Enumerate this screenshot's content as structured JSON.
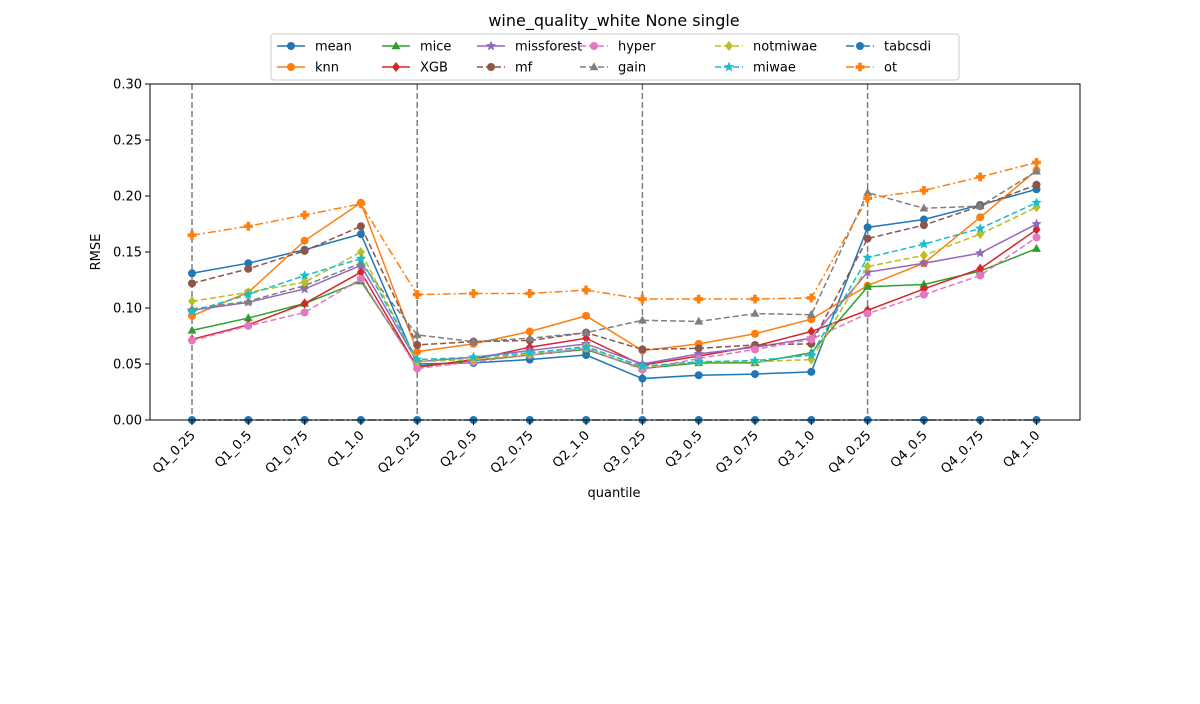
{
  "chart_data": {
    "type": "line",
    "title": "wine_quality_white None single",
    "xlabel": "quantile",
    "ylabel": "RMSE",
    "ylim": [
      0,
      0.3
    ],
    "yticks": [
      "0.00",
      "0.05",
      "0.10",
      "0.15",
      "0.20",
      "0.25",
      "0.30"
    ],
    "categories": [
      "Q1_0.25",
      "Q1_0.5",
      "Q1_0.75",
      "Q1_1.0",
      "Q2_0.25",
      "Q2_0.5",
      "Q2_0.75",
      "Q2_1.0",
      "Q3_0.25",
      "Q3_0.5",
      "Q3_0.75",
      "Q3_1.0",
      "Q4_0.25",
      "Q4_0.5",
      "Q4_0.75",
      "Q4_1.0"
    ],
    "vlines_at": [
      "Q1_0.25",
      "Q2_0.25",
      "Q3_0.25",
      "Q4_0.25"
    ],
    "grid": false,
    "legend_position": "top-center",
    "legend_columns": 6,
    "series": [
      {
        "name": "mean",
        "color": "#1f77b4",
        "dash": "solid",
        "marker": "circle",
        "values": [
          0.131,
          0.14,
          0.152,
          0.166,
          0.05,
          0.051,
          0.054,
          0.058,
          0.037,
          0.04,
          0.041,
          0.043,
          0.172,
          0.179,
          0.192,
          0.206
        ]
      },
      {
        "name": "knn",
        "color": "#ff7f0e",
        "dash": "solid",
        "marker": "circle",
        "values": [
          0.093,
          0.114,
          0.16,
          0.194,
          0.061,
          0.068,
          0.079,
          0.093,
          0.062,
          0.068,
          0.077,
          0.09,
          0.12,
          0.14,
          0.181,
          0.223
        ]
      },
      {
        "name": "mice",
        "color": "#2ca02c",
        "dash": "solid",
        "marker": "triangle",
        "values": [
          0.08,
          0.091,
          0.104,
          0.124,
          0.048,
          0.053,
          0.058,
          0.063,
          0.046,
          0.051,
          0.051,
          0.06,
          0.119,
          0.121,
          0.133,
          0.153
        ]
      },
      {
        "name": "XGB",
        "color": "#d62728",
        "dash": "solid",
        "marker": "diamond",
        "values": [
          0.072,
          0.085,
          0.104,
          0.132,
          0.047,
          0.054,
          0.065,
          0.073,
          0.049,
          0.057,
          0.066,
          0.079,
          0.098,
          0.117,
          0.135,
          0.17
        ]
      },
      {
        "name": "missforest",
        "color": "#9467bd",
        "dash": "solid",
        "marker": "star",
        "values": [
          0.098,
          0.105,
          0.117,
          0.138,
          0.052,
          0.056,
          0.062,
          0.068,
          0.05,
          0.059,
          0.065,
          0.073,
          0.132,
          0.14,
          0.149,
          0.175
        ]
      },
      {
        "name": "mf",
        "color": "#8c564b",
        "dash": "dashed",
        "marker": "circle",
        "values": [
          0.122,
          0.135,
          0.151,
          0.173,
          0.067,
          0.07,
          0.071,
          0.078,
          0.063,
          0.064,
          0.067,
          0.068,
          0.162,
          0.174,
          0.191,
          0.21
        ]
      },
      {
        "name": "hyper",
        "color": "#e377c2",
        "dash": "dashed",
        "marker": "circle",
        "values": [
          0.071,
          0.084,
          0.096,
          0.126,
          0.046,
          0.052,
          0.058,
          0.064,
          0.045,
          0.055,
          0.063,
          0.072,
          0.095,
          0.112,
          0.129,
          0.163
        ]
      },
      {
        "name": "gain",
        "color": "#7f7f7f",
        "dash": "dashed",
        "marker": "triangle",
        "values": [
          0.099,
          0.106,
          0.12,
          0.14,
          0.076,
          0.07,
          0.073,
          0.078,
          0.089,
          0.088,
          0.095,
          0.094,
          0.203,
          0.189,
          0.191,
          0.222
        ]
      },
      {
        "name": "notmiwae",
        "color": "#bcbd22",
        "dash": "dashed",
        "marker": "diamond",
        "values": [
          0.106,
          0.114,
          0.123,
          0.15,
          0.052,
          0.054,
          0.059,
          0.066,
          0.047,
          0.052,
          0.052,
          0.054,
          0.137,
          0.147,
          0.166,
          0.19
        ]
      },
      {
        "name": "miwae",
        "color": "#17becf",
        "dash": "dashed",
        "marker": "star",
        "values": [
          0.097,
          0.112,
          0.129,
          0.144,
          0.054,
          0.056,
          0.06,
          0.065,
          0.048,
          0.052,
          0.053,
          0.058,
          0.145,
          0.157,
          0.171,
          0.194
        ]
      },
      {
        "name": "tabcsdi",
        "color": "#1f77b4",
        "dash": "dashdot",
        "marker": "circle",
        "values": [
          0,
          0,
          0,
          0,
          0,
          0,
          0,
          0,
          0,
          0,
          0,
          0,
          0,
          0,
          0,
          0
        ]
      },
      {
        "name": "ot",
        "color": "#ff7f0e",
        "dash": "dashdot",
        "marker": "cross",
        "values": [
          0.165,
          0.173,
          0.183,
          0.193,
          0.112,
          0.113,
          0.113,
          0.116,
          0.108,
          0.108,
          0.108,
          0.109,
          0.198,
          0.205,
          0.217,
          0.23
        ]
      }
    ]
  }
}
